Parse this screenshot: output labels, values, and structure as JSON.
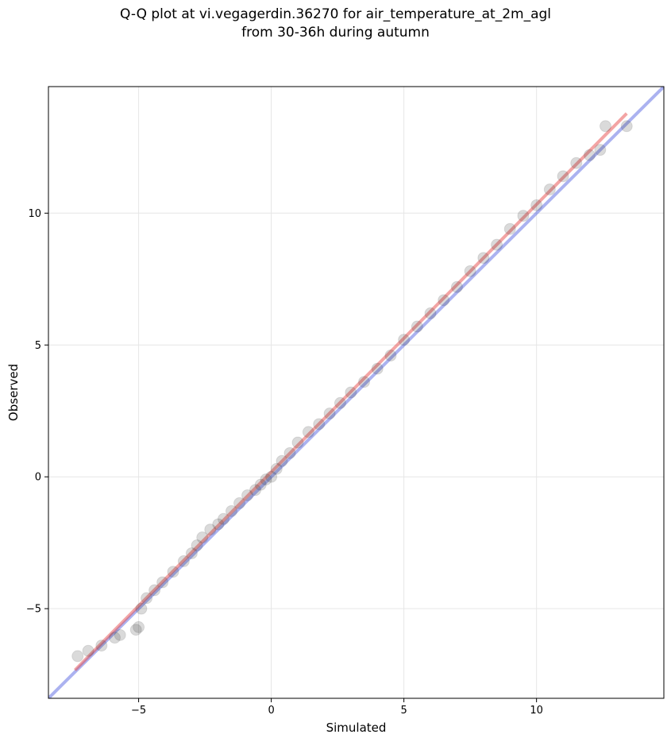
{
  "chart_data": {
    "type": "scatter",
    "title": [
      "Q-Q plot at vi.vegagerdin.36270 for air_temperature_at_2m_agl",
      "from 30-36h during autumn"
    ],
    "xlabel": "Simulated",
    "ylabel": "Observed",
    "xlim": [
      -8.4,
      14.8
    ],
    "ylim": [
      -8.4,
      14.8
    ],
    "xticks": [
      -5,
      0,
      5,
      10
    ],
    "yticks": [
      -5,
      0,
      5,
      10
    ],
    "xtick_labels": [
      "−5",
      "0",
      "5",
      "10"
    ],
    "ytick_labels": [
      "−5",
      "0",
      "5",
      "10"
    ],
    "grid": true,
    "reference_line": {
      "name": "1:1",
      "color": "#4455dd",
      "slope": 1,
      "intercept": 0
    },
    "fit_line": {
      "color": "#e84a4a",
      "x_range": [
        -7.4,
        13.4
      ],
      "slope": 1.015,
      "intercept": 0.18
    },
    "marker_color": "#333333",
    "series": [
      {
        "x": [
          -7.3,
          -6.9,
          -6.4,
          -5.9,
          -5.7,
          -5.1,
          -5.0,
          -4.9,
          -4.7,
          -4.4,
          -4.1,
          -3.7,
          -3.3,
          -3.0,
          -2.8,
          -2.6,
          -2.3,
          -2.0,
          -1.8,
          -1.5,
          -1.2,
          -0.9,
          -0.6,
          -0.4,
          -0.2,
          0.0,
          0.2,
          0.4,
          0.7,
          1.0,
          1.4,
          1.8,
          2.2,
          2.6,
          3.0,
          3.5,
          4.0,
          4.5,
          5.0,
          5.5,
          6.0,
          6.5,
          7.0,
          7.5,
          8.0,
          8.5,
          9.0,
          9.5,
          10.0,
          10.5,
          11.0,
          11.5,
          12.0,
          12.4,
          12.6,
          13.4
        ],
        "y": [
          -6.8,
          -6.6,
          -6.4,
          -6.1,
          -6.0,
          -5.8,
          -5.7,
          -5.0,
          -4.6,
          -4.3,
          -4.0,
          -3.6,
          -3.2,
          -2.9,
          -2.6,
          -2.3,
          -2.0,
          -1.8,
          -1.6,
          -1.3,
          -1.0,
          -0.7,
          -0.5,
          -0.3,
          -0.1,
          0.0,
          0.3,
          0.6,
          0.9,
          1.3,
          1.7,
          2.0,
          2.4,
          2.8,
          3.2,
          3.6,
          4.1,
          4.6,
          5.2,
          5.7,
          6.2,
          6.7,
          7.2,
          7.8,
          8.3,
          8.8,
          9.4,
          9.9,
          10.3,
          10.9,
          11.4,
          11.9,
          12.2,
          12.4,
          13.3,
          13.3
        ]
      }
    ]
  }
}
